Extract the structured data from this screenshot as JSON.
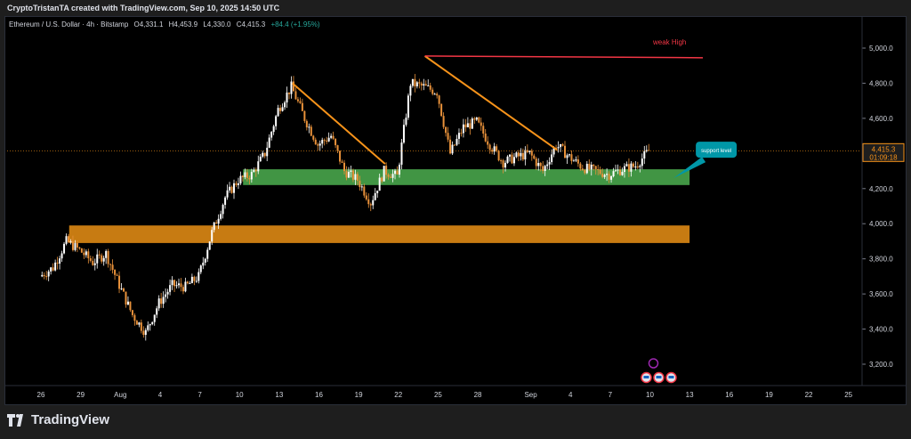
{
  "header": {
    "attribution": "CryptoTristanTA created with TradingView.com, Sep 10, 2025 14:50 UTC"
  },
  "symbol": {
    "name": "Ethereum / U.S. Dollar · 4h · Bitstamp",
    "open": "O4,331.1",
    "high": "H4,453.9",
    "low": "L4,330.0",
    "close": "C4,415.3",
    "change": "+84.4 (+1.95%)"
  },
  "footer": {
    "brand": "TradingView"
  },
  "colors": {
    "up": "#ffffff",
    "down": "#e8913a",
    "trend": "#f7931a",
    "support": "#4caf50",
    "demand": "#c77b12",
    "weak_high": "#f23645",
    "price_tag": "#f7931a",
    "callout": "#0097a7"
  },
  "chart_data": {
    "type": "candlestick",
    "title": "",
    "ylim": [
      3100,
      5100
    ],
    "y_ticks": [
      3200,
      3400,
      3600,
      3800,
      4000,
      4200,
      4400,
      4600,
      4800,
      5000
    ],
    "y_tick_labels": [
      "3,200.0",
      "3,400.0",
      "3,600.0",
      "3,800.0",
      "4,000.0",
      "4,200.0",
      "4,400.0",
      "4,600.0",
      "4,800.0",
      "5,000.0"
    ],
    "x_ticks": [
      {
        "date": "2025-07-26",
        "label": "26"
      },
      {
        "date": "2025-07-29",
        "label": "29"
      },
      {
        "date": "2025-08-01",
        "label": "Aug"
      },
      {
        "date": "2025-08-04",
        "label": "4"
      },
      {
        "date": "2025-08-07",
        "label": "7"
      },
      {
        "date": "2025-08-10",
        "label": "10"
      },
      {
        "date": "2025-08-13",
        "label": "13"
      },
      {
        "date": "2025-08-16",
        "label": "16"
      },
      {
        "date": "2025-08-19",
        "label": "19"
      },
      {
        "date": "2025-08-22",
        "label": "22"
      },
      {
        "date": "2025-08-25",
        "label": "25"
      },
      {
        "date": "2025-08-28",
        "label": "28"
      },
      {
        "date": "2025-09-01",
        "label": "Sep"
      },
      {
        "date": "2025-09-04",
        "label": "4"
      },
      {
        "date": "2025-09-07",
        "label": "7"
      },
      {
        "date": "2025-09-10",
        "label": "10"
      },
      {
        "date": "2025-09-13",
        "label": "13"
      },
      {
        "date": "2025-09-16",
        "label": "16"
      },
      {
        "date": "2025-09-19",
        "label": "19"
      },
      {
        "date": "2025-09-22",
        "label": "22"
      },
      {
        "date": "2025-09-25",
        "label": "25"
      }
    ],
    "price_path": [
      [
        "2025-07-26",
        3700
      ],
      [
        "2025-07-27",
        3750
      ],
      [
        "2025-07-28",
        3900
      ],
      [
        "2025-07-29",
        3850
      ],
      [
        "2025-07-30",
        3780
      ],
      [
        "2025-07-31",
        3830
      ],
      [
        "2025-08-01",
        3650
      ],
      [
        "2025-08-02",
        3480
      ],
      [
        "2025-08-03",
        3380
      ],
      [
        "2025-08-04",
        3550
      ],
      [
        "2025-08-05",
        3650
      ],
      [
        "2025-08-06",
        3640
      ],
      [
        "2025-08-07",
        3700
      ],
      [
        "2025-08-08",
        3950
      ],
      [
        "2025-08-09",
        4150
      ],
      [
        "2025-08-10",
        4250
      ],
      [
        "2025-08-11",
        4280
      ],
      [
        "2025-08-12",
        4400
      ],
      [
        "2025-08-13",
        4650
      ],
      [
        "2025-08-14",
        4780
      ],
      [
        "2025-08-15",
        4600
      ],
      [
        "2025-08-16",
        4450
      ],
      [
        "2025-08-17",
        4500
      ],
      [
        "2025-08-18",
        4300
      ],
      [
        "2025-08-19",
        4250
      ],
      [
        "2025-08-20",
        4120
      ],
      [
        "2025-08-21",
        4300
      ],
      [
        "2025-08-22",
        4270
      ],
      [
        "2025-08-23",
        4800
      ],
      [
        "2025-08-24",
        4780
      ],
      [
        "2025-08-25",
        4750
      ],
      [
        "2025-08-26",
        4400
      ],
      [
        "2025-08-27",
        4550
      ],
      [
        "2025-08-28",
        4580
      ],
      [
        "2025-08-29",
        4450
      ],
      [
        "2025-08-30",
        4350
      ],
      [
        "2025-08-31",
        4380
      ],
      [
        "2025-09-01",
        4400
      ],
      [
        "2025-09-02",
        4300
      ],
      [
        "2025-09-03",
        4450
      ],
      [
        "2025-09-04",
        4380
      ],
      [
        "2025-09-05",
        4320
      ],
      [
        "2025-09-06",
        4300
      ],
      [
        "2025-09-07",
        4280
      ],
      [
        "2025-09-08",
        4310
      ],
      [
        "2025-09-09",
        4330
      ],
      [
        "2025-09-10",
        4415
      ]
    ],
    "last_price": {
      "value": 4415.3,
      "label": "4,415.3",
      "countdown": "01:09:18"
    },
    "annotations": {
      "weak_high": {
        "label": "weak High",
        "from": [
          "2025-08-24",
          4955
        ],
        "to": [
          "2025-09-14",
          4945
        ]
      },
      "trendlines": [
        {
          "from": [
            "2025-08-14",
            4800
          ],
          "to": [
            "2025-08-21",
            4340
          ]
        },
        {
          "from": [
            "2025-08-24",
            4955
          ],
          "to": [
            "2025-09-03",
            4420
          ]
        }
      ],
      "support_zone": {
        "label": "support level",
        "x_from": "2025-08-10",
        "x_to": "2025-09-13",
        "y_from": 4220,
        "y_to": 4310
      },
      "demand_zone": {
        "x_from": "2025-07-28",
        "x_to": "2025-09-13",
        "y_from": 3890,
        "y_to": 3990
      }
    }
  }
}
